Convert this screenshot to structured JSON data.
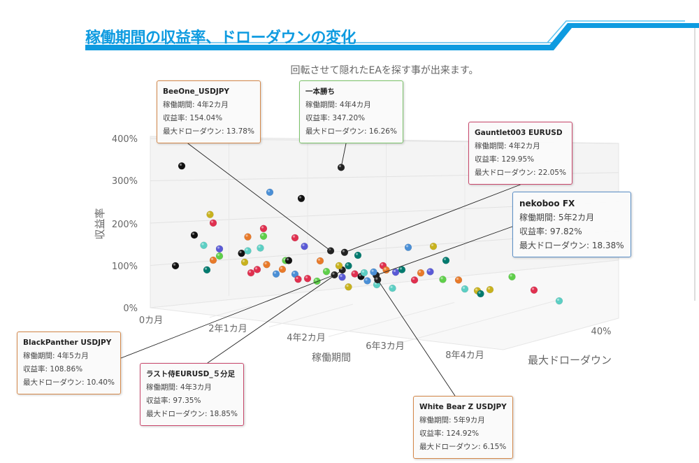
{
  "header": {
    "title": "稼働期間の収益率、ドローダウンの変化",
    "accent": "#0e9be0"
  },
  "chart_data": {
    "type": "scatter",
    "dimensions": 3,
    "subtitle": "回転させて隠れたEAを探す事が出来ます。",
    "ylabel": "収益率",
    "xlabel": "稼働期間",
    "zlabel": "最大ドローダウン",
    "yticks": [
      "0%",
      "100%",
      "200%",
      "300%",
      "400%"
    ],
    "xticks": [
      "0カ月",
      "2年1カ月",
      "4年2カ月",
      "6年3カ月",
      "8年4カ月"
    ],
    "zticks": [
      "40%"
    ],
    "ylim": [
      0,
      400
    ],
    "xlim_months": [
      0,
      100
    ],
    "zlim": [
      0,
      40
    ],
    "labels": {
      "period": "稼働期間",
      "ret": "収益率",
      "dd": "最大ドローダウン"
    },
    "highlighted": [
      {
        "name": "BeeOne_USDJPY",
        "period": "4年2カ月",
        "ret": "154.04%",
        "dd": "13.78%",
        "months": 50,
        "r": 154.04,
        "z": 13.78,
        "color": "#d4884a"
      },
      {
        "name": "一本勝ち",
        "period": "4年4カ月",
        "ret": "347.20%",
        "dd": "16.26%",
        "months": 52,
        "r": 347.2,
        "z": 16.26,
        "color": "#7cc36a"
      },
      {
        "name": "Gauntlet003 EURUSD",
        "period": "4年2カ月",
        "ret": "129.95%",
        "dd": "22.05%",
        "months": 50,
        "r": 129.95,
        "z": 22.05,
        "color": "#c9476b"
      },
      {
        "name": "nekoboo FX",
        "period": "5年2カ月",
        "ret": "97.82%",
        "dd": "18.38%",
        "months": 62,
        "r": 97.82,
        "z": 18.38,
        "color": "#5b8fc7"
      },
      {
        "name": "BlackPanther USDJPY",
        "period": "4年5カ月",
        "ret": "108.86%",
        "dd": "10.40%",
        "months": 53,
        "r": 108.86,
        "z": 10.4,
        "color": "#d4884a"
      },
      {
        "name": "ラスト侍EURUSD_５分足",
        "period": "4年3カ月",
        "ret": "97.35%",
        "dd": "18.85%",
        "months": 51,
        "r": 97.35,
        "z": 18.85,
        "color": "#c9476b"
      },
      {
        "name": "White Bear Z USDJPY",
        "period": "5年9カ月",
        "ret": "124.92%",
        "dd": "6.15%",
        "months": 69,
        "r": 124.92,
        "z": 6.15,
        "color": "#d4884a"
      }
    ],
    "points": [
      [
        2,
        300,
        15,
        "#111111"
      ],
      [
        30,
        268,
        15,
        "#4a8fd6"
      ],
      [
        40,
        264,
        15,
        "#111111"
      ],
      [
        11,
        195,
        15,
        "#c8b21e"
      ],
      [
        12,
        176,
        15,
        "#e0304f"
      ],
      [
        6,
        141,
        15,
        "#111111"
      ],
      [
        9,
        120,
        15,
        "#5ccfc4"
      ],
      [
        0,
        62,
        15,
        "#111111"
      ],
      [
        10,
        63,
        15,
        "#007a6e"
      ],
      [
        12,
        88,
        15,
        "#e87a2a"
      ],
      [
        14,
        117,
        15,
        "#5a5ad6"
      ],
      [
        14,
        100,
        15,
        "#5fcf4a"
      ],
      [
        21,
        114,
        15,
        "#111111"
      ],
      [
        23,
        122,
        15,
        "#5ccfc4"
      ],
      [
        23,
        155,
        15,
        "#e87a2a"
      ],
      [
        28,
        180,
        15,
        "#e0304f"
      ],
      [
        28,
        162,
        15,
        "#5fcf4a"
      ],
      [
        27,
        133,
        15,
        "#5ccfc4"
      ],
      [
        22,
        94,
        15,
        "#c8b21e"
      ],
      [
        24,
        71,
        15,
        "#e0304f"
      ],
      [
        26,
        81,
        15,
        "#e0304f"
      ],
      [
        29,
        96,
        15,
        "#e87a2a"
      ],
      [
        32,
        77,
        15,
        "#4a8fd6"
      ],
      [
        34,
        90,
        15,
        "#e87a2a"
      ],
      [
        35,
        112,
        15,
        "#5fcf4a"
      ],
      [
        36,
        113,
        15,
        "#111111"
      ],
      [
        38,
        169,
        15,
        "#e0304f"
      ],
      [
        41,
        152,
        15,
        "#5a5ad6"
      ],
      [
        38,
        83,
        15,
        "#4a8fd6"
      ],
      [
        42,
        77,
        15,
        "#e0304f"
      ],
      [
        39,
        72,
        15,
        "#e0304f"
      ],
      [
        45,
        74,
        15,
        "#5fcf4a"
      ],
      [
        46,
        123,
        15,
        "#e87a2a"
      ],
      [
        55,
        121,
        15,
        "#007a6e"
      ],
      [
        58,
        149,
        15,
        "#007a6e"
      ],
      [
        55,
        71,
        15,
        "#c8b21e"
      ],
      [
        59,
        100,
        15,
        "#111111"
      ],
      [
        61,
        92,
        15,
        "#4a8fd6"
      ],
      [
        63,
        115,
        15,
        "#4a8fd6"
      ],
      [
        64,
        86,
        15,
        "#5ccfc4"
      ],
      [
        66,
        133,
        15,
        "#e0304f"
      ],
      [
        67,
        124,
        15,
        "#e87a2a"
      ],
      [
        70,
        122,
        15,
        "#5a5ad6"
      ],
      [
        74,
        185,
        15,
        "#4a8fd6"
      ],
      [
        72,
        130,
        15,
        "#007a6e"
      ],
      [
        69,
        83,
        15,
        "#5ccfc4"
      ],
      [
        76,
        110,
        15,
        "#e0304f"
      ],
      [
        78,
        129,
        15,
        "#e87a2a"
      ],
      [
        81,
        135,
        15,
        "#5a5ad6"
      ],
      [
        82,
        196,
        15,
        "#c8b21e"
      ],
      [
        86,
        167,
        15,
        "#007a6e"
      ],
      [
        85,
        121,
        15,
        "#5fcf4a"
      ],
      [
        90,
        125,
        15,
        "#e87a2a"
      ],
      [
        92,
        106,
        15,
        "#5ccfc4"
      ],
      [
        96,
        106,
        15,
        "#c8b21e"
      ],
      [
        100,
        113,
        15,
        "#c8b21e"
      ],
      [
        97,
        100,
        15,
        "#007a6e"
      ],
      [
        107,
        151,
        15,
        "#5fcf4a"
      ],
      [
        114,
        127,
        15,
        "#e0304f"
      ],
      [
        122,
        110,
        15,
        "#5ccfc4"
      ],
      [
        48,
        100,
        15,
        "#5fcf4a"
      ],
      [
        52,
        118,
        15,
        "#c8b21e"
      ],
      [
        57,
        104,
        15,
        "#e0304f"
      ],
      [
        53,
        92,
        15,
        "#5a5ad6"
      ],
      [
        60,
        110,
        15,
        "#5ccfc4"
      ]
    ]
  }
}
